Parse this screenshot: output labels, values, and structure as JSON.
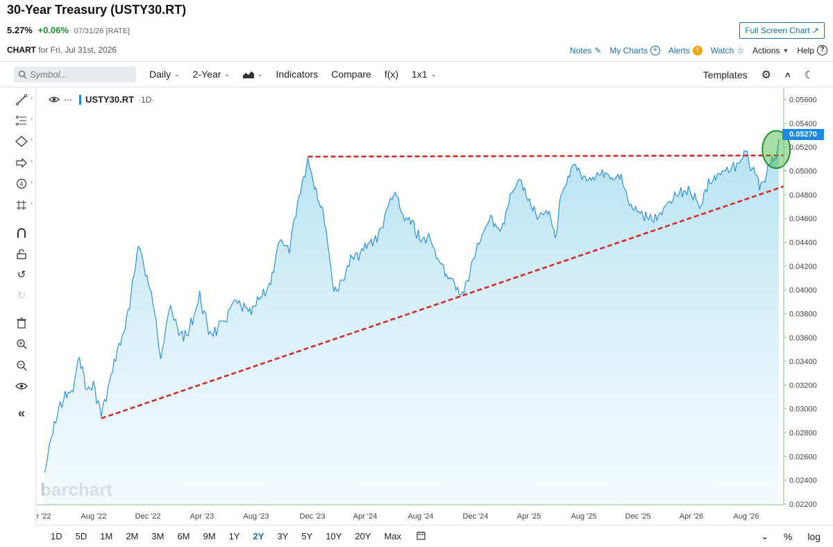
{
  "header": {
    "title": "30-Year Treasury (USTY30.RT)",
    "price": "5.27%",
    "change": "+0.06%",
    "date": "07/31/26 [RATE]",
    "fullscreen_label": "Full Screen Chart",
    "chart_for_label": "CHART",
    "chart_for_date": "for Fri, Jul 31st, 2026"
  },
  "topnav": {
    "notes": "Notes",
    "mycharts": "My Charts",
    "alerts": "Alerts",
    "watch": "Watch",
    "actions": "Actions",
    "help": "Help"
  },
  "toolbar": {
    "search_placeholder": "Symbol...",
    "interval": "Daily",
    "period": "2-Year",
    "indicators": "Indicators",
    "compare": "Compare",
    "fx": "f(x)",
    "layout": "1x1",
    "templates": "Templates"
  },
  "legend": {
    "symbol": "USTY30.RT",
    "interval": "·1D·"
  },
  "watermark": "barchart",
  "bottom": {
    "ranges": [
      "1D",
      "5D",
      "1M",
      "2M",
      "3M",
      "6M",
      "9M",
      "1Y",
      "2Y",
      "3Y",
      "5Y",
      "10Y",
      "20Y",
      "Max"
    ],
    "active_range": "2Y",
    "percent": "%",
    "log": "log"
  },
  "colors": {
    "line": "#1e88e5",
    "trend": "#d62828",
    "accent": "#1b6fb0",
    "highlight": "#3cb43c"
  },
  "chart_data": {
    "type": "area",
    "title": "30-Year Treasury (USTY30.RT)",
    "last_value_label": "0.05270",
    "x_tick_labels": [
      "r '22",
      "Aug '22",
      "Dec '22",
      "Apr '23",
      "Aug '23",
      "Dec '23",
      "Apr '24",
      "Aug '24",
      "Dec '24",
      "Apr '25",
      "Aug '25",
      "Dec '25",
      "Apr '26",
      "Aug '26"
    ],
    "y_ticks": [
      "0.05600",
      "0.05400",
      "0.05200",
      "0.05000",
      "0.04800",
      "0.04600",
      "0.04400",
      "0.04200",
      "0.04000",
      "0.03800",
      "0.03600",
      "0.03400",
      "0.03200",
      "0.03000",
      "0.02800",
      "0.02600",
      "0.02400",
      "0.02200"
    ],
    "ylim": [
      0.022,
      0.0565
    ],
    "grid": false,
    "series": [
      {
        "values": [
          [
            "2022-04-01",
            0.0245
          ],
          [
            "2022-04-15",
            0.0275
          ],
          [
            "2022-05-01",
            0.03
          ],
          [
            "2022-05-15",
            0.031
          ],
          [
            "2022-06-01",
            0.0315
          ],
          [
            "2022-06-15",
            0.0345
          ],
          [
            "2022-07-01",
            0.0315
          ],
          [
            "2022-07-15",
            0.032
          ],
          [
            "2022-08-01",
            0.0295
          ],
          [
            "2022-08-15",
            0.0315
          ],
          [
            "2022-09-01",
            0.0345
          ],
          [
            "2022-09-15",
            0.036
          ],
          [
            "2022-10-01",
            0.0385
          ],
          [
            "2022-10-20",
            0.044
          ],
          [
            "2022-11-01",
            0.042
          ],
          [
            "2022-11-20",
            0.039
          ],
          [
            "2022-12-07",
            0.0345
          ],
          [
            "2022-12-25",
            0.0385
          ],
          [
            "2023-01-15",
            0.0365
          ],
          [
            "2023-02-01",
            0.036
          ],
          [
            "2023-03-01",
            0.0395
          ],
          [
            "2023-03-20",
            0.0365
          ],
          [
            "2023-04-06",
            0.0365
          ],
          [
            "2023-04-25",
            0.0375
          ],
          [
            "2023-05-15",
            0.039
          ],
          [
            "2023-06-01",
            0.0385
          ],
          [
            "2023-06-20",
            0.038
          ],
          [
            "2023-07-10",
            0.0395
          ],
          [
            "2023-08-01",
            0.0405
          ],
          [
            "2023-08-20",
            0.044
          ],
          [
            "2023-09-10",
            0.0435
          ],
          [
            "2023-10-01",
            0.048
          ],
          [
            "2023-10-20",
            0.051
          ],
          [
            "2023-11-10",
            0.048
          ],
          [
            "2023-11-25",
            0.046
          ],
          [
            "2023-12-15",
            0.04
          ],
          [
            "2023-12-28",
            0.0403
          ],
          [
            "2024-01-20",
            0.0425
          ],
          [
            "2024-02-10",
            0.043
          ],
          [
            "2024-03-01",
            0.044
          ],
          [
            "2024-03-20",
            0.0445
          ],
          [
            "2024-04-15",
            0.0475
          ],
          [
            "2024-04-25",
            0.048
          ],
          [
            "2024-05-15",
            0.046
          ],
          [
            "2024-06-01",
            0.0455
          ],
          [
            "2024-06-20",
            0.044
          ],
          [
            "2024-07-10",
            0.0445
          ],
          [
            "2024-08-01",
            0.042
          ],
          [
            "2024-08-20",
            0.041
          ],
          [
            "2024-09-10",
            0.04
          ],
          [
            "2024-09-17",
            0.0395
          ],
          [
            "2024-10-10",
            0.0425
          ],
          [
            "2024-11-01",
            0.045
          ],
          [
            "2024-11-20",
            0.046
          ],
          [
            "2024-12-10",
            0.045
          ],
          [
            "2025-01-01",
            0.048
          ],
          [
            "2025-01-15",
            0.0495
          ],
          [
            "2025-02-05",
            0.0475
          ],
          [
            "2025-03-01",
            0.046
          ],
          [
            "2025-03-20",
            0.0465
          ],
          [
            "2025-04-05",
            0.0445
          ],
          [
            "2025-04-20",
            0.0485
          ],
          [
            "2025-05-15",
            0.0505
          ],
          [
            "2025-06-05",
            0.0495
          ],
          [
            "2025-06-25",
            0.049
          ],
          [
            "2025-07-15",
            0.05
          ],
          [
            "2025-08-05",
            0.049
          ],
          [
            "2025-08-25",
            0.0495
          ],
          [
            "2025-09-15",
            0.047
          ],
          [
            "2025-10-05",
            0.0465
          ],
          [
            "2025-10-20",
            0.046
          ],
          [
            "2025-11-10",
            0.046
          ],
          [
            "2025-12-01",
            0.047
          ],
          [
            "2025-12-25",
            0.048
          ],
          [
            "2026-01-20",
            0.0485
          ],
          [
            "2026-02-10",
            0.047
          ],
          [
            "2026-03-01",
            0.049
          ],
          [
            "2026-03-20",
            0.0495
          ],
          [
            "2026-04-10",
            0.05
          ],
          [
            "2026-05-01",
            0.0505
          ],
          [
            "2026-05-20",
            0.0515
          ],
          [
            "2026-06-10",
            0.0495
          ],
          [
            "2026-06-25",
            0.0485
          ],
          [
            "2026-07-10",
            0.0505
          ],
          [
            "2026-07-25",
            0.051
          ],
          [
            "2026-07-31",
            0.0527
          ]
        ]
      }
    ],
    "trendlines": [
      {
        "style": "dashed",
        "from": [
          "2022-08-01",
          0.0292
        ],
        "to": [
          "2026-08-10",
          0.0487
        ]
      },
      {
        "style": "dashed",
        "from": [
          "2023-10-20",
          0.0512
        ],
        "to": [
          "2026-08-10",
          0.0513
        ]
      }
    ],
    "highlight_circle": {
      "at": [
        "2026-07-25",
        0.0518
      ]
    }
  }
}
